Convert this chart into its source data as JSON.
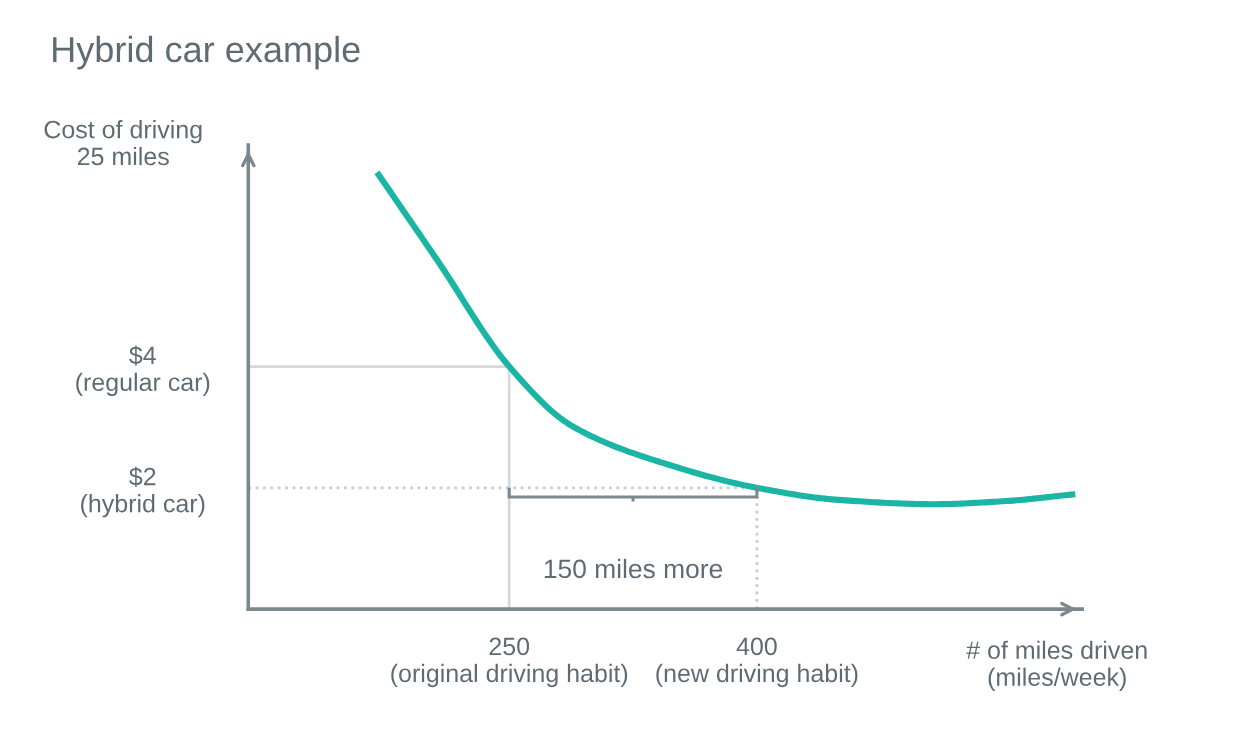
{
  "chart_data": {
    "type": "line",
    "title": "Hybrid car example",
    "ylabel": "Cost of driving\n25 miles",
    "xlabel": "# of miles driven\n(miles/week)",
    "x": [
      171,
      207,
      250,
      288,
      349,
      400,
      450,
      507,
      550,
      591
    ],
    "series": [
      {
        "color": "#1bb5a5",
        "values": [
          7.16,
          5.73,
          4.0,
          3.02,
          2.36,
          2.0,
          1.8,
          1.73,
          1.78,
          1.89
        ]
      }
    ],
    "xlim": [
      92,
      597
    ],
    "ylim": [
      0,
      7.65
    ],
    "xticks": [
      {
        "value": 250,
        "label": "250\n(original driving habit)"
      },
      {
        "value": 400,
        "label": "400\n(new driving habit)"
      }
    ],
    "yticks": [
      {
        "value": 2,
        "label": "$2\n(hybrid car)"
      },
      {
        "value": 4,
        "label": "$4\n(regular car)"
      }
    ],
    "ref_lines": [
      {
        "axis": "y",
        "value": 4,
        "color": "#d5d9dc",
        "line_style": "solid"
      },
      {
        "axis": "x",
        "value": 250,
        "color": "#d5d9dc",
        "line_style": "solid"
      },
      {
        "axis": "y",
        "value": 2,
        "color": "#c8ccd0",
        "line_style": "dotted"
      },
      {
        "axis": "x",
        "value": 400,
        "color": "#c8ccd0",
        "line_style": "dotted"
      }
    ],
    "annotations": [
      {
        "text": "150 miles more",
        "x": 325,
        "y": 2
      }
    ],
    "grid": false,
    "legend": false,
    "marker": "none",
    "line_style": "solid"
  }
}
